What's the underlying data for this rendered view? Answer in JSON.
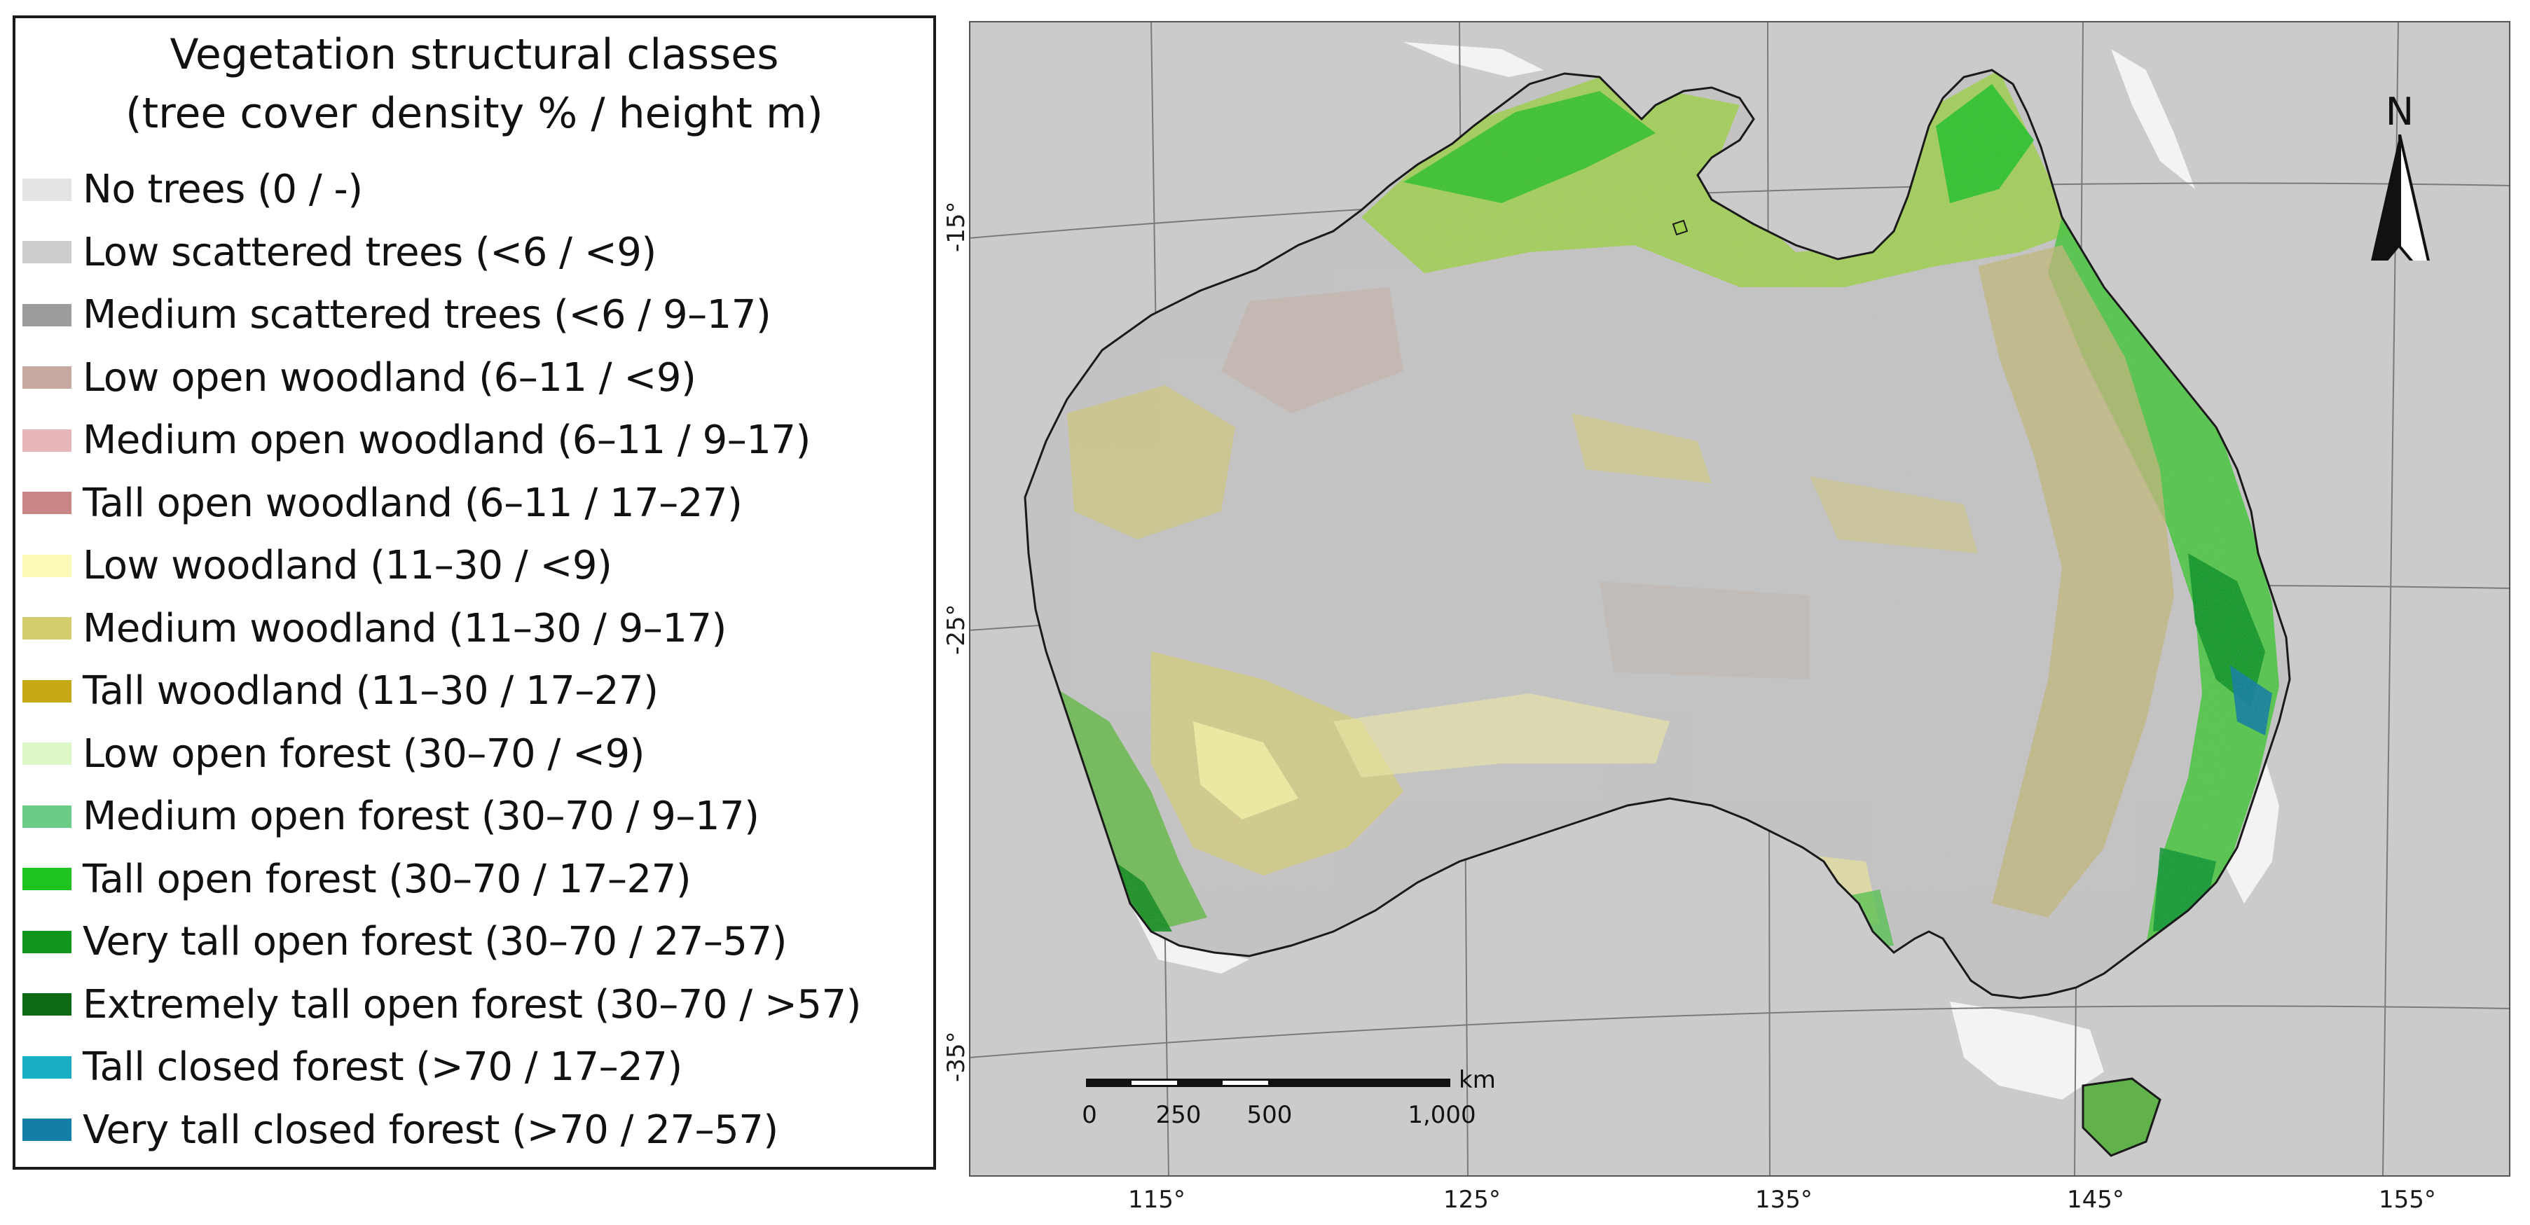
{
  "legend": {
    "title_line1": "Vegetation structural classes",
    "title_line2": "(tree cover density % / height m)",
    "items": [
      {
        "label": "No trees (0 / -)",
        "color": "#e4e4e4"
      },
      {
        "label": "Low scattered trees (<6 / <9)",
        "color": "#cdcdcd"
      },
      {
        "label": "Medium scattered trees (<6 / 9–17)",
        "color": "#9c9c9c"
      },
      {
        "label": "Low open woodland (6–11 / <9)",
        "color": "#c5a9a0"
      },
      {
        "label": "Medium open woodland (6–11 / 9–17)",
        "color": "#e6b6b8"
      },
      {
        "label": "Tall open woodland (6–11 / 17–27)",
        "color": "#c98585"
      },
      {
        "label": "Low woodland (11–30 / <9)",
        "color": "#fbf9b7"
      },
      {
        "label": "Medium woodland (11–30 / 9–17)",
        "color": "#d3cd6d"
      },
      {
        "label": "Tall woodland (11–30 / 17–27)",
        "color": "#c4a814"
      },
      {
        "label": "Low open forest (30–70 / <9)",
        "color": "#dcf8c7"
      },
      {
        "label": "Medium open forest (30–70 / 9–17)",
        "color": "#6ccc85"
      },
      {
        "label": "Tall open forest (30–70 / 17–27)",
        "color": "#1ec31e"
      },
      {
        "label": "Very tall open forest (30–70 / 27–57)",
        "color": "#10961b"
      },
      {
        "label": "Extremely tall open forest (30–70 / >57)",
        "color": "#0b6a12"
      },
      {
        "label": "Tall closed forest (>70 / 17–27)",
        "color": "#19aec6"
      },
      {
        "label": "Very tall closed forest (>70 / 27–57)",
        "color": "#147ea6"
      }
    ]
  },
  "map": {
    "north_arrow_label": "N",
    "north_arrow_icon": "north-arrow-icon",
    "longitude_labels": [
      "115°",
      "125°",
      "135°",
      "145°",
      "155°"
    ],
    "latitude_labels": [
      "-15°",
      "-25°",
      "-35°"
    ],
    "scale_bar": {
      "ticks": [
        "0",
        "250",
        "500",
        "1,000"
      ],
      "unit": "km"
    },
    "colors": {
      "ocean": "#cbcbcb",
      "land_base": "#c3c3c3",
      "outline": "#1a1a1a",
      "no_data": "#f3f3f3"
    }
  }
}
